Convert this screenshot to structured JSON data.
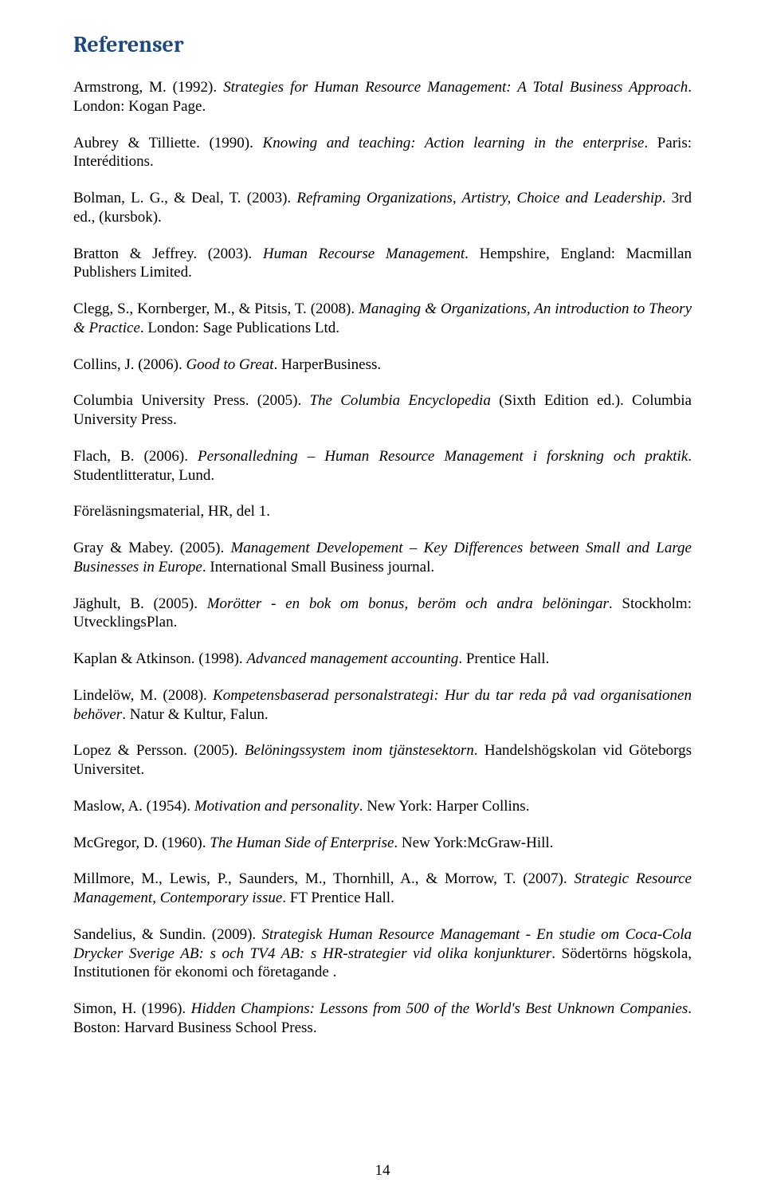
{
  "heading": "Referenser",
  "page_number": "14",
  "colors": {
    "heading": "#1f497d",
    "text": "#000000",
    "background": "#ffffff"
  },
  "typography": {
    "heading_font": "Cambria",
    "body_font": "Times New Roman",
    "heading_size_pt": 21,
    "body_size_pt": 14
  },
  "references": [
    {
      "plain_a": "Armstrong, M. (1992). ",
      "italic": "Strategies for Human Resource Management: A Total Business Approach",
      "plain_b": ". London: Kogan Page."
    },
    {
      "plain_a": "Aubrey & Tilliette. (1990). ",
      "italic": "Knowing and teaching: Action learning in the enterprise",
      "plain_b": ". Paris: Interéditions."
    },
    {
      "plain_a": "Bolman, L. G., & Deal, T. (2003). ",
      "italic": "Reframing Organizations, Artistry, Choice and Leadership",
      "plain_b": ". 3rd ed., (kursbok)."
    },
    {
      "plain_a": "Bratton & Jeffrey. (2003). ",
      "italic": "Human Recourse Management",
      "plain_b": ". Hempshire, England: Macmillan Publishers Limited."
    },
    {
      "plain_a": "Clegg, S., Kornberger, M., & Pitsis, T. (2008). ",
      "italic": "Managing & Organizations, An introduction to Theory & Practice",
      "plain_b": ". London: Sage Publications Ltd."
    },
    {
      "plain_a": "Collins, J. (2006). ",
      "italic": "Good to Great",
      "plain_b": ". HarperBusiness."
    },
    {
      "plain_a": "Columbia University Press. (2005). ",
      "italic": "The Columbia Encyclopedia",
      "plain_b": " (Sixth Edition ed.). Columbia University Press."
    },
    {
      "plain_a": "Flach, B. (2006). ",
      "italic": "Personalledning – Human Resource Management i forskning och praktik",
      "plain_b": ". Studentlitteratur, Lund."
    },
    {
      "plain_a": "Föreläsningsmaterial, HR, del 1.",
      "italic": "",
      "plain_b": ""
    },
    {
      "plain_a": "Gray & Mabey. (2005). ",
      "italic": "Management Developement – Key Differences between Small and Large Businesses in Europe",
      "plain_b": ". International Small Business journal."
    },
    {
      "plain_a": "Jäghult, B. (2005). ",
      "italic": "Morötter - en bok om bonus, beröm och andra belöningar",
      "plain_b": ". Stockholm: UtvecklingsPlan."
    },
    {
      "plain_a": "Kaplan & Atkinson. (1998). ",
      "italic": "Advanced management accounting",
      "plain_b": ". Prentice Hall."
    },
    {
      "plain_a": "Lindelöw, M. (2008). ",
      "italic": "Kompetensbaserad personalstrategi: Hur du tar reda på vad organisationen behöver",
      "plain_b": ". Natur & Kultur, Falun."
    },
    {
      "plain_a": "Lopez & Persson. (2005). ",
      "italic": "Belöningssystem inom tjänstesektorn",
      "plain_b": ". Handelshögskolan vid Göteborgs Universitet."
    },
    {
      "plain_a": "Maslow, A. (1954). ",
      "italic": "Motivation and personality",
      "plain_b": ". New York: Harper Collins."
    },
    {
      "plain_a": "McGregor, D. (1960). ",
      "italic": "The Human Side of Enterprise",
      "plain_b": ". New York:McGraw-Hill."
    },
    {
      "plain_a": "Millmore, M., Lewis, P., Saunders, M., Thornhill, A., & Morrow, T. (2007). ",
      "italic": "Strategic Resource Management, Contemporary issue",
      "plain_b": ". FT Prentice Hall."
    },
    {
      "plain_a": "Sandelius, & Sundin. (2009). ",
      "italic": "Strategisk Human Resource Managemant - En studie om Coca-Cola Drycker Sverige AB: s och TV4 AB: s HR-strategier vid olika konjunkturer",
      "plain_b": ". Södertörns högskola, Institutionen för ekonomi och företagande ."
    },
    {
      "plain_a": "Simon, H. (1996). ",
      "italic": "Hidden Champions: Lessons from 500 of the World's Best Unknown Companies",
      "plain_b": ". Boston: Harvard Business School Press."
    }
  ]
}
